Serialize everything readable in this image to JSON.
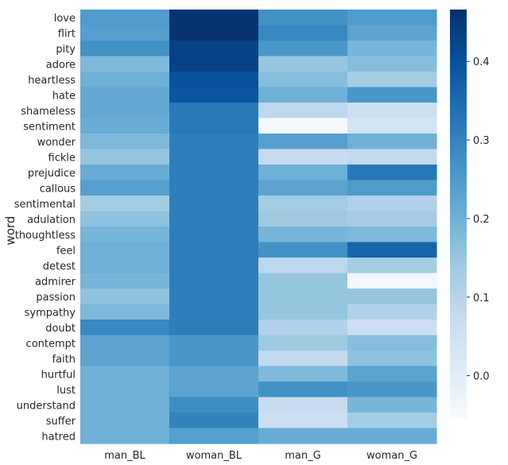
{
  "chart_data": {
    "type": "heatmap",
    "ylabel": "word",
    "columns": [
      "man_BL",
      "woman_BL",
      "man_G",
      "woman_G"
    ],
    "rows": [
      "love",
      "flirt",
      "pity",
      "adore",
      "heartless",
      "hate",
      "shameless",
      "sentiment",
      "wonder",
      "fickle",
      "prejudice",
      "callous",
      "sentimental",
      "adulation",
      "thoughtless",
      "feel",
      "detest",
      "admirer",
      "passion",
      "sympathy",
      "doubt",
      "contempt",
      "faith",
      "hurtful",
      "lust",
      "understand",
      "suffer",
      "hatred"
    ],
    "values": [
      [
        0.25,
        0.46,
        0.27,
        0.25
      ],
      [
        0.24,
        0.46,
        0.29,
        0.23
      ],
      [
        0.27,
        0.43,
        0.26,
        0.19
      ],
      [
        0.18,
        0.43,
        0.15,
        0.17
      ],
      [
        0.2,
        0.4,
        0.17,
        0.13
      ],
      [
        0.22,
        0.39,
        0.2,
        0.26
      ],
      [
        0.22,
        0.32,
        0.09,
        0.06
      ],
      [
        0.21,
        0.32,
        -0.05,
        0.04
      ],
      [
        0.18,
        0.31,
        0.24,
        0.2
      ],
      [
        0.15,
        0.31,
        0.07,
        0.08
      ],
      [
        0.21,
        0.31,
        0.2,
        0.32
      ],
      [
        0.24,
        0.31,
        0.23,
        0.25
      ],
      [
        0.13,
        0.31,
        0.13,
        0.11
      ],
      [
        0.16,
        0.31,
        0.14,
        0.13
      ],
      [
        0.19,
        0.31,
        0.19,
        0.18
      ],
      [
        0.2,
        0.31,
        0.27,
        0.36
      ],
      [
        0.2,
        0.31,
        0.09,
        0.13
      ],
      [
        0.19,
        0.31,
        0.15,
        -0.04
      ],
      [
        0.16,
        0.31,
        0.15,
        0.15
      ],
      [
        0.18,
        0.31,
        0.15,
        0.11
      ],
      [
        0.29,
        0.31,
        0.11,
        0.06
      ],
      [
        0.23,
        0.26,
        0.14,
        0.17
      ],
      [
        0.23,
        0.26,
        0.08,
        0.16
      ],
      [
        0.2,
        0.23,
        0.18,
        0.23
      ],
      [
        0.2,
        0.23,
        0.27,
        0.26
      ],
      [
        0.2,
        0.28,
        0.07,
        0.19
      ],
      [
        0.2,
        0.3,
        0.06,
        0.13
      ],
      [
        0.2,
        0.24,
        0.21,
        0.21
      ]
    ],
    "colorbar": {
      "min": -0.055,
      "max": 0.466,
      "ticks": [
        0.0,
        0.1,
        0.2,
        0.3,
        0.4
      ],
      "tick_labels": [
        "0.0",
        "0.1",
        "0.2",
        "0.3",
        "0.4"
      ]
    },
    "colormap": "Blues",
    "colormap_stops": [
      "#f7fbff",
      "#deebf7",
      "#c6dbef",
      "#9ecae1",
      "#6baed6",
      "#4292c6",
      "#2171b5",
      "#08519c",
      "#08306b"
    ]
  }
}
